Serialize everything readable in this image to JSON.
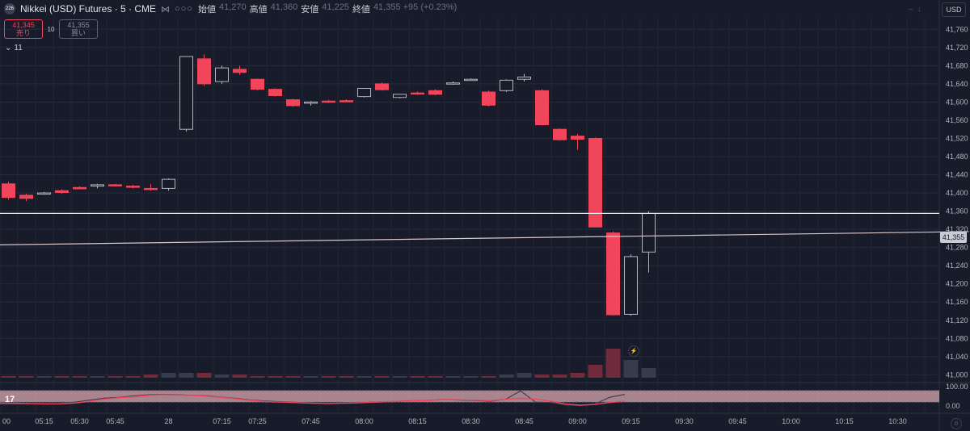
{
  "header": {
    "badge": "226",
    "symbol_title": "Nikkei (USD) Futures · 5 · CME",
    "icon_name": "compare-icon",
    "dots": "○○○",
    "ohlc": [
      {
        "key": "始値",
        "value": "41,270"
      },
      {
        "key": "高値",
        "value": "41,360"
      },
      {
        "key": "安値",
        "value": "41,225"
      },
      {
        "key": "終値",
        "value": "41,355 +95 (+0.23%)"
      }
    ]
  },
  "trade": {
    "sell_price": "41,345",
    "sell_label": "売り",
    "quantity": "10",
    "buy_price": "41,355",
    "buy_label": "買い"
  },
  "indicators_toggle": {
    "count": "11"
  },
  "currency": "USD",
  "last_price_tag": "41,355",
  "colors": {
    "background": "#171b2a",
    "up": "#171b2a",
    "up_border": "#b2b5be",
    "down": "#f0455b",
    "grid": "#262b3c",
    "oscillator_band": "#d9a8b0",
    "oscillator_line_k": "#c7cad3",
    "oscillator_line_d": "#f0455b"
  },
  "chart_data": {
    "type": "candlestick",
    "price_axis": {
      "ticks": [
        "41,760",
        "41,720",
        "41,680",
        "41,640",
        "41,600",
        "41,560",
        "41,520",
        "41,480",
        "41,440",
        "41,400",
        "41,360",
        "41,320",
        "41,280",
        "41,240",
        "41,200",
        "41,160",
        "41,120",
        "41,080",
        "41,040",
        "41,000"
      ],
      "ylim": [
        40990,
        41780
      ]
    },
    "oscillator_axis": {
      "ticks": [
        "100.00",
        "0.00"
      ],
      "ylim": [
        0,
        100
      ]
    },
    "time_labels": [
      "00",
      "05:15",
      "05:30",
      "05:45",
      "28",
      "07:15",
      "07:25",
      "07:45",
      "08:00",
      "08:15",
      "08:30",
      "08:45",
      "09:00",
      "09:15",
      "09:30",
      "09:45",
      "10:00",
      "10:15",
      "10:30"
    ],
    "time_label_slots": [
      0,
      2,
      4,
      6,
      9,
      12,
      14,
      17,
      20,
      23,
      26,
      29,
      32,
      35,
      38,
      41,
      44,
      47,
      50
    ],
    "candles": [
      {
        "o": 41420,
        "h": 41425,
        "l": 41385,
        "c": 41390
      },
      {
        "o": 41395,
        "h": 41398,
        "l": 41382,
        "c": 41388
      },
      {
        "o": 41398,
        "h": 41402,
        "l": 41396,
        "c": 41400
      },
      {
        "o": 41405,
        "h": 41408,
        "l": 41398,
        "c": 41401
      },
      {
        "o": 41412,
        "h": 41415,
        "l": 41408,
        "c": 41409
      },
      {
        "o": 41415,
        "h": 41420,
        "l": 41410,
        "c": 41418
      },
      {
        "o": 41418,
        "h": 41420,
        "l": 41415,
        "c": 41417
      },
      {
        "o": 41415,
        "h": 41418,
        "l": 41410,
        "c": 41413
      },
      {
        "o": 41410,
        "h": 41420,
        "l": 41405,
        "c": 41408
      },
      {
        "o": 41410,
        "h": 41432,
        "l": 41405,
        "c": 41430
      },
      {
        "o": 41540,
        "h": 41700,
        "l": 41535,
        "c": 41700
      },
      {
        "o": 41695,
        "h": 41705,
        "l": 41635,
        "c": 41640
      },
      {
        "o": 41645,
        "h": 41680,
        "l": 41640,
        "c": 41675
      },
      {
        "o": 41672,
        "h": 41680,
        "l": 41660,
        "c": 41665
      },
      {
        "o": 41650,
        "h": 41652,
        "l": 41625,
        "c": 41628
      },
      {
        "o": 41628,
        "h": 41630,
        "l": 41612,
        "c": 41614
      },
      {
        "o": 41605,
        "h": 41607,
        "l": 41590,
        "c": 41592
      },
      {
        "o": 41598,
        "h": 41602,
        "l": 41592,
        "c": 41600
      },
      {
        "o": 41602,
        "h": 41605,
        "l": 41598,
        "c": 41601
      },
      {
        "o": 41603,
        "h": 41606,
        "l": 41600,
        "c": 41601
      },
      {
        "o": 41612,
        "h": 41630,
        "l": 41610,
        "c": 41630
      },
      {
        "o": 41640,
        "h": 41643,
        "l": 41625,
        "c": 41627
      },
      {
        "o": 41610,
        "h": 41618,
        "l": 41608,
        "c": 41617
      },
      {
        "o": 41620,
        "h": 41623,
        "l": 41616,
        "c": 41618
      },
      {
        "o": 41625,
        "h": 41628,
        "l": 41615,
        "c": 41617
      },
      {
        "o": 41640,
        "h": 41645,
        "l": 41638,
        "c": 41642
      },
      {
        "o": 41650,
        "h": 41652,
        "l": 41648,
        "c": 41650
      },
      {
        "o": 41622,
        "h": 41625,
        "l": 41590,
        "c": 41593
      },
      {
        "o": 41625,
        "h": 41650,
        "l": 41622,
        "c": 41648
      },
      {
        "o": 41650,
        "h": 41662,
        "l": 41645,
        "c": 41655
      },
      {
        "o": 41625,
        "h": 41628,
        "l": 41548,
        "c": 41550
      },
      {
        "o": 41540,
        "h": 41542,
        "l": 41515,
        "c": 41517
      },
      {
        "o": 41525,
        "h": 41530,
        "l": 41495,
        "c": 41518
      },
      {
        "o": 41520,
        "h": 41522,
        "l": 41325,
        "c": 41325
      },
      {
        "o": 41312,
        "h": 41315,
        "l": 41130,
        "c": 41132
      },
      {
        "o": 41133,
        "h": 41265,
        "l": 41130,
        "c": 41260
      },
      {
        "o": 41270,
        "h": 41360,
        "l": 41225,
        "c": 41355
      }
    ],
    "horizontal_line": 41355,
    "trend_line": {
      "from": {
        "slot": -2,
        "price": 41285
      },
      "to": {
        "slot": 54,
        "price": 41315
      }
    },
    "volume": [
      1,
      1,
      1,
      1,
      1,
      1,
      1,
      1,
      2,
      3,
      3,
      3,
      2,
      2,
      1,
      1,
      1,
      1,
      1,
      1,
      1,
      1,
      1,
      1,
      1,
      1,
      1,
      1,
      2,
      3,
      2,
      2,
      3,
      8,
      18,
      11,
      6
    ],
    "stochastic": {
      "k": [
        10,
        10,
        12,
        11,
        11,
        20,
        30,
        40,
        45,
        52,
        58,
        60,
        58,
        55,
        52,
        45,
        38,
        30,
        25,
        22,
        18,
        15,
        12,
        14,
        16,
        20,
        22,
        25,
        28,
        30,
        35,
        30,
        28,
        25,
        35,
        78,
        20,
        18,
        5,
        2,
        10,
        45,
        60
      ],
      "d": [
        15,
        14,
        12,
        11,
        11,
        15,
        24,
        35,
        43,
        48,
        55,
        58,
        56,
        54,
        50,
        44,
        36,
        28,
        22,
        20,
        17,
        14,
        12,
        14,
        16,
        19,
        22,
        25,
        27,
        29,
        34,
        32,
        30,
        28,
        35,
        40,
        35,
        25,
        10,
        4,
        8,
        18,
        25
      ]
    }
  }
}
